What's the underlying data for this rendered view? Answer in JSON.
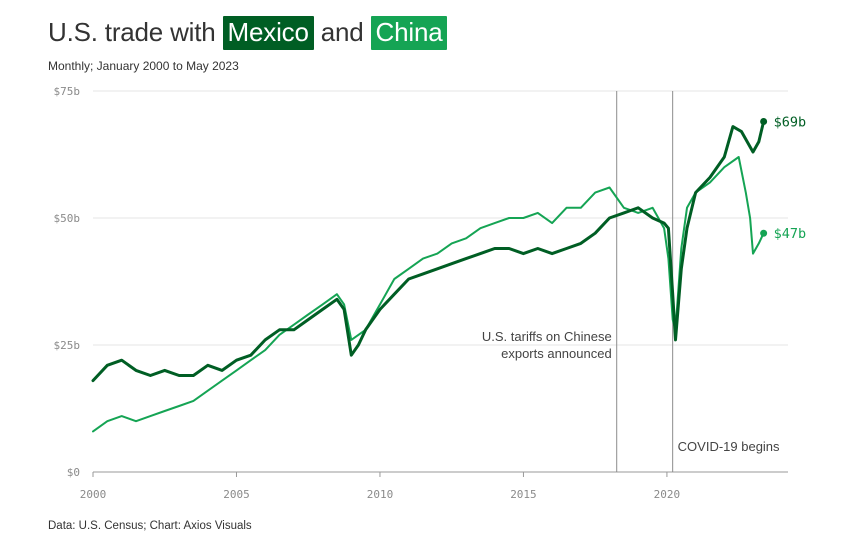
{
  "header": {
    "title_pre": "U.S. trade with",
    "title_mexico": "Mexico",
    "title_and": "and",
    "title_china": "China",
    "subtitle": "Monthly; January 2000 to May 2023"
  },
  "footer": {
    "source": "Data: U.S. Census; Chart: Axios Visuals"
  },
  "colors": {
    "mexico": "#005e24",
    "china": "#15a454",
    "grid": "#e6e6e6",
    "axis": "#999999",
    "marker_line": "#8c8c8c"
  },
  "chart_data": {
    "type": "line",
    "title": "U.S. trade with Mexico and China",
    "subtitle": "Monthly; January 2000 to May 2023",
    "xlabel": "",
    "ylabel": "",
    "xlim": [
      2000,
      2023.7
    ],
    "ylim": [
      0,
      75
    ],
    "x_ticks": [
      "2000",
      "2005",
      "2010",
      "2015",
      "2020"
    ],
    "y_ticks": [
      "$0",
      "$25b",
      "$50b",
      "$75b"
    ],
    "grid": true,
    "series": [
      {
        "name": "Mexico",
        "color": "#005e24",
        "x": [
          2000.0,
          2000.5,
          2001.0,
          2001.5,
          2002.0,
          2002.5,
          2003.0,
          2003.5,
          2004.0,
          2004.5,
          2005.0,
          2005.5,
          2006.0,
          2006.5,
          2007.0,
          2007.5,
          2008.0,
          2008.5,
          2008.75,
          2009.0,
          2009.25,
          2009.5,
          2010.0,
          2010.5,
          2011.0,
          2011.5,
          2012.0,
          2012.5,
          2013.0,
          2013.5,
          2014.0,
          2014.5,
          2015.0,
          2015.5,
          2016.0,
          2016.5,
          2017.0,
          2017.5,
          2018.0,
          2018.5,
          2019.0,
          2019.5,
          2019.9,
          2020.05,
          2020.2,
          2020.3,
          2020.5,
          2020.7,
          2021.0,
          2021.5,
          2022.0,
          2022.3,
          2022.6,
          2022.9,
          2023.0,
          2023.2,
          2023.37
        ],
        "values": [
          18,
          21,
          22,
          20,
          19,
          20,
          19,
          19,
          21,
          20,
          22,
          23,
          26,
          28,
          28,
          30,
          32,
          34,
          32,
          23,
          25,
          28,
          32,
          35,
          38,
          39,
          40,
          41,
          42,
          43,
          44,
          44,
          43,
          44,
          43,
          44,
          45,
          47,
          50,
          51,
          52,
          50,
          49,
          48,
          35,
          26,
          40,
          48,
          55,
          58,
          62,
          68,
          67,
          64,
          63,
          65,
          69
        ]
      },
      {
        "name": "China",
        "color": "#15a454",
        "x": [
          2000.0,
          2000.5,
          2001.0,
          2001.5,
          2002.0,
          2002.5,
          2003.0,
          2003.5,
          2004.0,
          2004.5,
          2005.0,
          2005.5,
          2006.0,
          2006.5,
          2007.0,
          2007.5,
          2008.0,
          2008.5,
          2008.75,
          2009.0,
          2009.5,
          2010.0,
          2010.5,
          2011.0,
          2011.5,
          2012.0,
          2012.5,
          2013.0,
          2013.5,
          2014.0,
          2014.5,
          2015.0,
          2015.5,
          2016.0,
          2016.5,
          2017.0,
          2017.5,
          2018.0,
          2018.5,
          2019.0,
          2019.5,
          2019.9,
          2020.05,
          2020.2,
          2020.3,
          2020.5,
          2020.7,
          2021.0,
          2021.5,
          2022.0,
          2022.5,
          2022.75,
          2022.9,
          2023.0,
          2023.2,
          2023.37
        ],
        "values": [
          8,
          10,
          11,
          10,
          11,
          12,
          13,
          14,
          16,
          18,
          20,
          22,
          24,
          27,
          29,
          31,
          33,
          35,
          33,
          26,
          28,
          33,
          38,
          40,
          42,
          43,
          45,
          46,
          48,
          49,
          50,
          50,
          51,
          49,
          52,
          52,
          55,
          56,
          52,
          51,
          52,
          48,
          42,
          30,
          28,
          44,
          52,
          55,
          57,
          60,
          62,
          55,
          50,
          43,
          45,
          47
        ]
      }
    ],
    "end_labels": [
      {
        "series": "Mexico",
        "text": "$69b",
        "value": 69
      },
      {
        "series": "China",
        "text": "$47b",
        "value": 47
      }
    ],
    "annotations": [
      {
        "x": 2018.25,
        "text_lines": [
          "U.S. tariffs on Chinese",
          "exports announced"
        ]
      },
      {
        "x": 2020.2,
        "text_lines": [
          "COVID-19 begins"
        ]
      }
    ]
  }
}
